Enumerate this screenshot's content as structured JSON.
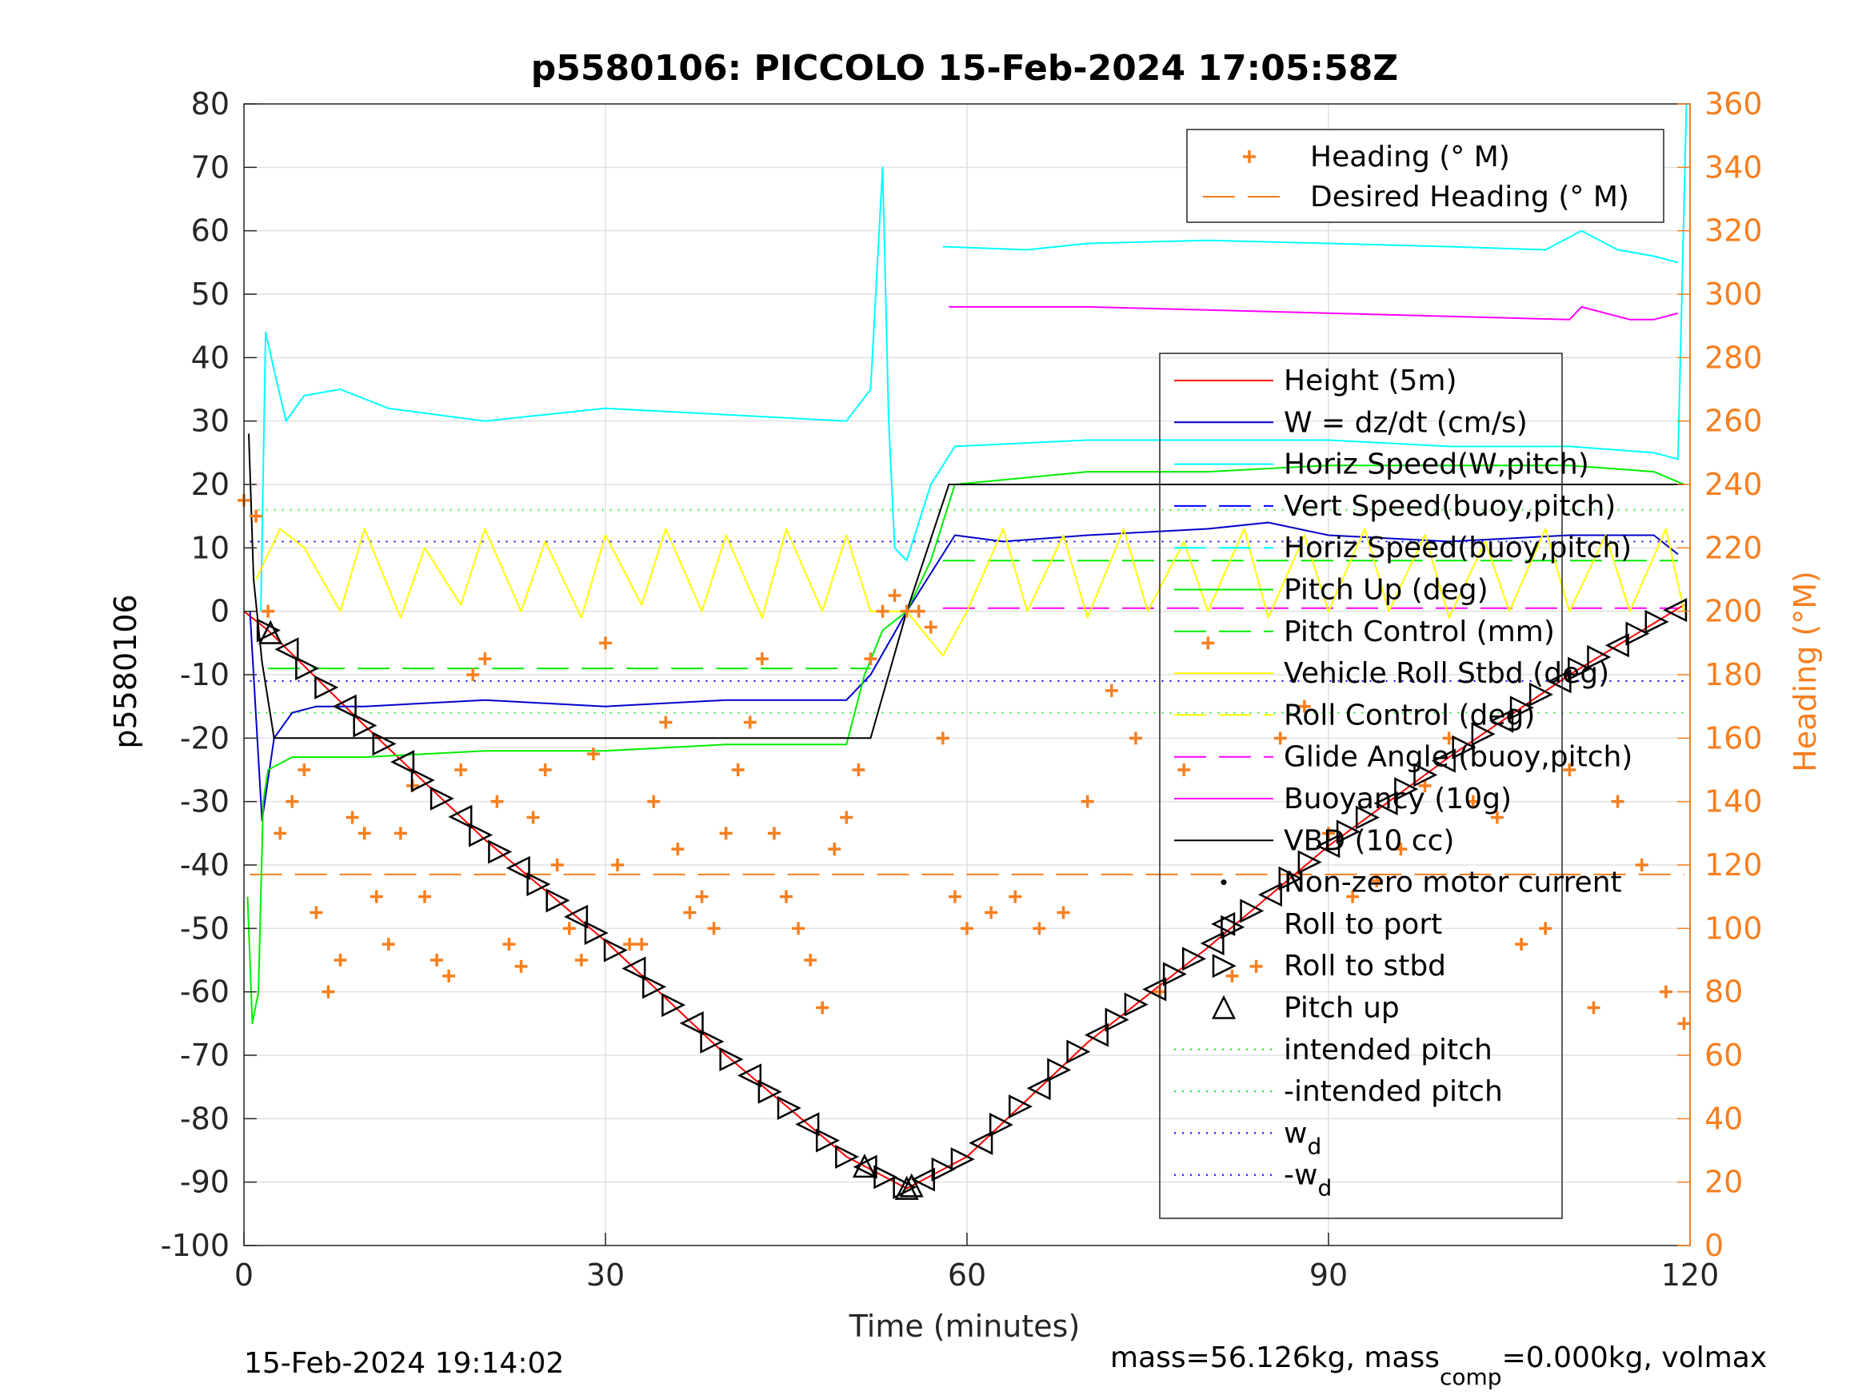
{
  "chart_data": {
    "type": "line",
    "title": "p5580106: PICCOLO 15-Feb-2024 17:05:58Z",
    "xlabel": "Time (minutes)",
    "ylabel": "p5580106",
    "y2label": "Heading (°M)",
    "xlim": [
      0,
      120
    ],
    "ylim": [
      -100,
      80
    ],
    "y2lim": [
      0,
      360
    ],
    "xticks": [
      0,
      30,
      60,
      90,
      120
    ],
    "yticks": [
      -100,
      -90,
      -80,
      -70,
      -60,
      -50,
      -40,
      -30,
      -20,
      -10,
      0,
      10,
      20,
      30,
      40,
      50,
      60,
      70,
      80
    ],
    "y2ticks": [
      0,
      20,
      40,
      60,
      80,
      100,
      120,
      140,
      160,
      180,
      200,
      220,
      240,
      260,
      280,
      300,
      320,
      340,
      360
    ],
    "grid": true,
    "footer_left": "15-Feb-2024 19:14:02",
    "footer_right_parts": [
      "mass=56.126kg, mass",
      "comp",
      "=0.000kg, volmax"
    ],
    "heading_legend": [
      {
        "name": "Heading (° M)",
        "color": "#f77f1f",
        "style": "plus"
      },
      {
        "name": "Desired Heading (° M)",
        "color": "#f77f1f",
        "style": "dash"
      }
    ],
    "legend": [
      {
        "name": "Height (5m)",
        "color": "#ff0000",
        "style": "solid"
      },
      {
        "name": "W = dz/dt (cm/s)",
        "color": "#0000cc",
        "style": "solid"
      },
      {
        "name": "Horiz Speed(W,pitch)",
        "color": "#00ffff",
        "style": "solid"
      },
      {
        "name": "Vert Speed(buoy,pitch)",
        "color": "#0000ff",
        "style": "dash"
      },
      {
        "name": "Horiz Speed(buoy,pitch)",
        "color": "#00ffff",
        "style": "dash"
      },
      {
        "name": "Pitch Up (deg)",
        "color": "#00ee00",
        "style": "solid"
      },
      {
        "name": "Pitch Control (mm)",
        "color": "#00ee00",
        "style": "dash"
      },
      {
        "name": "Vehicle Roll Stbd (deg)",
        "color": "#ffff00",
        "style": "solid"
      },
      {
        "name": "Roll Control (deg)",
        "color": "#ffff00",
        "style": "dash"
      },
      {
        "name": "Glide Angle (buoy,pitch)",
        "color": "#ff00ff",
        "style": "dash"
      },
      {
        "name": "Buoyancy (10g)",
        "color": "#ff00ff",
        "style": "solid"
      },
      {
        "name": "VBD (10 cc)",
        "color": "#000000",
        "style": "solid"
      },
      {
        "name": "Non-zero motor current",
        "color": "#000000",
        "style": "dot"
      },
      {
        "name": "Roll to port",
        "color": "#000000",
        "style": "tri-left"
      },
      {
        "name": "Roll to stbd",
        "color": "#000000",
        "style": "tri-right"
      },
      {
        "name": "Pitch up",
        "color": "#000000",
        "style": "tri-up"
      },
      {
        "name": "intended pitch",
        "color": "#00ee00",
        "style": "dotted"
      },
      {
        "name": "-intended pitch",
        "color": "#00ee00",
        "style": "dotted"
      },
      {
        "name": "w",
        "sub": "d",
        "color": "#0000ff",
        "style": "dotted"
      },
      {
        "name": "-w",
        "sub": "d",
        "color": "#0000ff",
        "style": "dotted"
      }
    ],
    "reference_lines": {
      "intended_pitch": 16,
      "minus_intended_pitch": -16,
      "w_d": 11,
      "minus_w_d": -11,
      "desired_heading": 117,
      "pitch_control_dive": -9,
      "pitch_control_climb": 8,
      "glide_angle_climb": 0.5
    },
    "series": [
      {
        "name": "Height (5m)",
        "x": [
          0,
          2,
          10,
          20,
          30,
          40,
          50,
          55,
          60,
          70,
          80,
          90,
          100,
          110,
          119.5
        ],
        "y": [
          0,
          -3,
          -18,
          -36,
          -52,
          -70,
          -86,
          -91,
          -86,
          -68,
          -53,
          -37,
          -23,
          -10,
          1
        ]
      },
      {
        "name": "W = dz/dt (cm/s)",
        "x": [
          0.5,
          1.5,
          2.5,
          4,
          6,
          10,
          20,
          30,
          40,
          50,
          52,
          55,
          57,
          59,
          63,
          70,
          80,
          85,
          90,
          100,
          110,
          117,
          119
        ],
        "y": [
          0,
          -33,
          -20,
          -16,
          -15,
          -15,
          -14,
          -15,
          -14,
          -14,
          -10,
          0,
          6,
          12,
          11,
          12,
          13,
          14,
          12,
          11,
          12,
          12,
          9
        ]
      },
      {
        "name": "Horiz Speed(W,pitch)",
        "x": [
          1.4,
          1.8,
          2.5,
          3.5,
          5,
          8,
          12,
          20,
          30,
          40,
          50,
          52,
          53,
          53.5,
          54,
          55,
          57,
          59,
          70,
          80,
          90,
          100,
          110,
          117,
          119,
          119.7
        ],
        "y": [
          0,
          44,
          38,
          30,
          34,
          35,
          32,
          30,
          32,
          31,
          30,
          35,
          70,
          30,
          10,
          8,
          20,
          26,
          27,
          27,
          27,
          26,
          26,
          25,
          24,
          80
        ]
      },
      {
        "name": "Horiz Speed(buoy,pitch)",
        "x": [
          58,
          65,
          70,
          80,
          90,
          100,
          108,
          111,
          114,
          117,
          119
        ],
        "y": [
          57.5,
          57,
          58,
          58.5,
          58,
          57.5,
          57,
          60,
          57,
          56,
          55
        ]
      },
      {
        "name": "Pitch Up (deg)",
        "x": [
          0.3,
          0.7,
          1.2,
          1.6,
          2,
          4,
          10,
          20,
          30,
          40,
          50,
          51.5,
          53,
          55,
          57,
          59,
          70,
          80,
          90,
          100,
          110,
          117,
          119.5
        ],
        "y": [
          -45,
          -65,
          -60,
          -30,
          -25,
          -23,
          -23,
          -22,
          -22,
          -21,
          -21,
          -10,
          -3,
          0,
          8,
          20,
          22,
          22,
          23,
          23,
          23,
          22,
          20
        ]
      },
      {
        "name": "Buoyancy (10g)",
        "x": [
          58.5,
          70,
          80,
          90,
          100,
          110,
          111,
          113,
          115,
          117,
          119
        ],
        "y": [
          48,
          48,
          47.5,
          47,
          46.5,
          46,
          48,
          47,
          46,
          46,
          47
        ]
      },
      {
        "name": "VBD (10 cc)",
        "x": [
          0.4,
          0.8,
          1.5,
          2.5,
          30,
          50,
          52,
          55,
          58.5,
          60,
          80,
          100,
          119.5
        ],
        "y": [
          28,
          5,
          -8,
          -20,
          -20,
          -20,
          -20,
          0,
          20,
          20,
          20,
          20,
          20
        ]
      },
      {
        "name": "Vehicle Roll Stbd (deg)",
        "x": [
          1,
          3,
          5,
          8,
          10,
          13,
          15,
          18,
          20,
          23,
          25,
          28,
          30,
          33,
          35,
          38,
          40,
          43,
          45,
          48,
          50,
          52,
          55,
          58,
          60,
          63,
          65,
          68,
          70,
          73,
          75,
          78,
          80,
          83,
          85,
          88,
          90,
          93,
          95,
          98,
          100,
          103,
          105,
          108,
          110,
          113,
          115,
          118,
          119.5
        ],
        "y": [
          5,
          13,
          10,
          0,
          13,
          -1,
          10,
          1,
          13,
          0,
          11,
          -1,
          12,
          1,
          13,
          0,
          12,
          -1,
          13,
          0,
          12,
          0,
          0,
          -7,
          0,
          13,
          0,
          12,
          -1,
          13,
          0,
          11,
          0,
          13,
          -1,
          12,
          0,
          13,
          0,
          12,
          -1,
          11,
          0,
          13,
          0,
          12,
          0,
          13,
          0
        ]
      },
      {
        "name": "Heading (° M)",
        "x": [
          0,
          1,
          2,
          3,
          4,
          5,
          6,
          7,
          8,
          9,
          10,
          11,
          12,
          13,
          14,
          15,
          16,
          17,
          18,
          19,
          20,
          21,
          22,
          23,
          24,
          25,
          26,
          27,
          28,
          29,
          30,
          31,
          32,
          33,
          34,
          35,
          36,
          37,
          38,
          39,
          40,
          41,
          42,
          43,
          44,
          45,
          46,
          47,
          48,
          49,
          50,
          51,
          52,
          53,
          54,
          55,
          56,
          57,
          58,
          59,
          60,
          62,
          64,
          66,
          68,
          70,
          72,
          74,
          76,
          78,
          80,
          82,
          84,
          86,
          88,
          90,
          92,
          94,
          96,
          98,
          100,
          102,
          104,
          106,
          108,
          110,
          112,
          114,
          116,
          118,
          119.5
        ],
        "y": [
          235,
          230,
          200,
          130,
          140,
          150,
          105,
          80,
          90,
          135,
          130,
          110,
          95,
          130,
          145,
          110,
          90,
          85,
          150,
          180,
          185,
          140,
          95,
          88,
          135,
          150,
          120,
          100,
          90,
          155,
          190,
          120,
          95,
          95,
          140,
          165,
          125,
          105,
          110,
          100,
          130,
          150,
          165,
          185,
          130,
          110,
          100,
          90,
          75,
          125,
          135,
          150,
          185,
          200,
          205,
          200,
          200,
          195,
          160,
          110,
          100,
          105,
          110,
          100,
          105,
          140,
          175,
          160,
          80,
          150,
          190,
          85,
          88,
          160,
          170,
          130,
          110,
          115,
          125,
          145,
          160,
          140,
          135,
          95,
          100,
          150,
          75,
          140,
          120,
          80,
          70
        ]
      }
    ]
  }
}
